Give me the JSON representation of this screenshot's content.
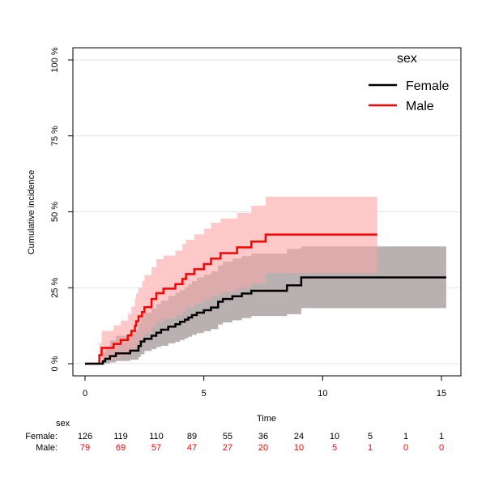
{
  "chart_data": {
    "type": "line",
    "step": true,
    "xlabel": "Time",
    "ylabel": "Cumulative incidence",
    "xlim": [
      0,
      15
    ],
    "ylim": [
      0,
      100
    ],
    "xticks": [
      0,
      5,
      10,
      15
    ],
    "yticks": [
      0,
      25,
      50,
      75,
      100
    ],
    "ytick_labels": [
      "0 %",
      "25 %",
      "50 %",
      "75 %",
      "100 %"
    ],
    "horizontal_grid": true,
    "legend": {
      "title": "sex",
      "placement": "top-right"
    },
    "series": [
      {
        "name": "Female",
        "color": "#000000",
        "band_color": "#bebebe",
        "x": [
          0,
          0.75,
          0.85,
          1.05,
          1.3,
          1.9,
          2.25,
          2.35,
          2.5,
          2.8,
          3.0,
          3.2,
          3.5,
          3.8,
          4.0,
          4.2,
          4.35,
          4.5,
          4.7,
          5.0,
          5.3,
          5.6,
          5.8,
          6.2,
          6.6,
          7.0,
          8.5,
          9.1,
          15.2
        ],
        "y": [
          0,
          0.8,
          1.6,
          2.5,
          3.4,
          4.3,
          5.8,
          7.3,
          8.2,
          9.2,
          10.2,
          11.2,
          12.2,
          13.0,
          13.8,
          14.5,
          15.2,
          16.0,
          16.8,
          17.6,
          18.5,
          20.4,
          21.3,
          22.2,
          23.1,
          24.0,
          25.8,
          28.4,
          28.4
        ],
        "lower": [
          0,
          0,
          0.1,
          0.4,
          0.9,
          1.3,
          2.2,
          3.1,
          4.2,
          4.8,
          5.5,
          5.9,
          6.7,
          7.2,
          7.8,
          8.4,
          8.9,
          9.5,
          10.1,
          10.7,
          11.4,
          12.9,
          13.6,
          14.3,
          15.0,
          15.7,
          16.3,
          18.3,
          18.3
        ],
        "upper": [
          0,
          3.6,
          5.6,
          7.6,
          9.2,
          11.0,
          13.4,
          15.4,
          16.8,
          18.2,
          19.6,
          20.8,
          22.4,
          23.4,
          24.2,
          25.2,
          26.2,
          27.2,
          28.4,
          29.3,
          30.4,
          32.4,
          33.6,
          34.6,
          35.4,
          36.2,
          37.8,
          38.6,
          38.6
        ]
      },
      {
        "name": "Male",
        "color": "#ff0000",
        "band_color": "#ffc0c0",
        "x": [
          0,
          0.6,
          0.7,
          1.2,
          1.5,
          1.8,
          1.95,
          2.1,
          2.15,
          2.25,
          2.4,
          2.5,
          2.8,
          3.0,
          3.3,
          3.8,
          4.1,
          4.25,
          4.6,
          5.0,
          5.3,
          5.7,
          6.4,
          7.0,
          7.6,
          12.3
        ],
        "y": [
          0,
          2.8,
          5.2,
          6.5,
          7.8,
          9.3,
          10.8,
          12.5,
          14.0,
          15.6,
          17.0,
          18.6,
          21.3,
          23.2,
          24.7,
          26.2,
          27.9,
          29.5,
          31.1,
          32.8,
          34.6,
          36.4,
          38.3,
          40.2,
          42.5,
          42.5
        ],
        "lower": [
          0,
          0.4,
          1.2,
          1.8,
          2.6,
          3.4,
          4.3,
          5.4,
          6.5,
          7.7,
          8.8,
          10.0,
          12.1,
          13.6,
          14.8,
          16.0,
          17.3,
          18.6,
          19.8,
          21.0,
          22.3,
          23.6,
          25.0,
          26.4,
          29.8,
          29.8
        ],
        "upper": [
          0,
          6.8,
          10.8,
          12.6,
          14.2,
          16.4,
          18.8,
          21.4,
          23.2,
          25.0,
          27.2,
          29.2,
          31.8,
          34.4,
          35.6,
          37.2,
          39.4,
          40.8,
          42.6,
          44.4,
          46.4,
          47.8,
          49.6,
          52.0,
          55.0,
          55.0
        ]
      }
    ]
  },
  "risk_table": {
    "title": "sex",
    "times": [
      0,
      1.5,
      3,
      4.5,
      6,
      7.5,
      9,
      10.5,
      12,
      13.5,
      15
    ],
    "rows": [
      {
        "label": "Female:",
        "color": "#000000",
        "values": [
          "126",
          "119",
          "110",
          "89",
          "55",
          "36",
          "24",
          "10",
          "5",
          "1",
          "1"
        ]
      },
      {
        "label": "Male:",
        "color": "#ff0000",
        "values": [
          "79",
          "69",
          "57",
          "47",
          "27",
          "20",
          "10",
          "5",
          "1",
          "0",
          "0"
        ]
      }
    ]
  }
}
